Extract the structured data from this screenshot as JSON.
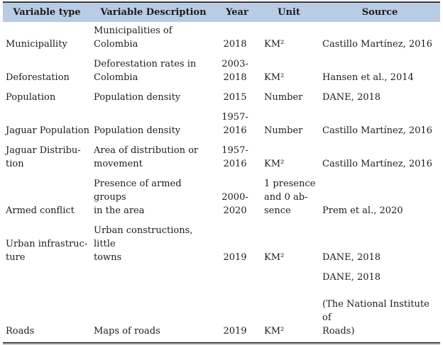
{
  "colors": {
    "header_bg": "#b8cce4",
    "rule_color": "#3c3c3c",
    "text_color": "#1c1c1c"
  },
  "table": {
    "columns": [
      {
        "label": "Variable type"
      },
      {
        "label": "Variable Description"
      },
      {
        "label": "Year"
      },
      {
        "label": "Unit"
      },
      {
        "label": "Source"
      }
    ],
    "rows": [
      {
        "type": "Municipallity",
        "description": "Municipalities of Colombia",
        "year": "2018",
        "unit": "KM²",
        "source": "Castillo Martínez, 2016"
      },
      {
        "type": "Deforestation",
        "description": "Deforestation rates in\nColombia",
        "year": "2003-\n2018",
        "unit": "KM²",
        "source": "Hansen et al., 2014"
      },
      {
        "type": "Population",
        "description": "Population density",
        "year": "2015",
        "unit": "Number",
        "source": "DANE, 2018"
      },
      {
        "type": "Jaguar Population",
        "description": "Population density",
        "year": "1957-\n2016",
        "unit": "Number",
        "source": "Castillo Martínez, 2016"
      },
      {
        "type": "Jaguar Distribu-\ntion",
        "description": "Area of distribution or\nmovement",
        "year": "1957-\n2016",
        "unit": "KM²",
        "source": "Castillo Martínez, 2016"
      },
      {
        "type": "Armed conflict",
        "description": "Presence of armed groups\nin the area",
        "year": "2000-\n2020",
        "unit": "1 presence\nand 0 ab-\nsence",
        "source": "Prem et al., 2020"
      },
      {
        "type": "Urban infrastruc-\nture",
        "description": "Urban constructions, little\ntowns",
        "year": "2019",
        "unit": "KM²",
        "source": "DANE, 2018"
      },
      {
        "type": "Roads",
        "description": "Maps of roads",
        "year": "2019",
        "unit": "KM²",
        "source": "DANE, 2018\n\n(The National Institute of\nRoads)"
      }
    ]
  }
}
